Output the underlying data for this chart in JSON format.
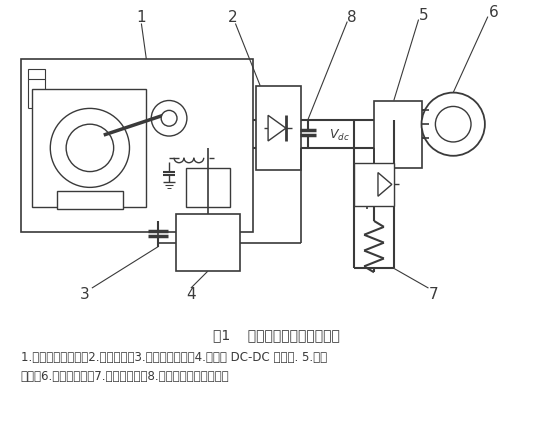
{
  "bg_color": "#ffffff",
  "line_color": "#3a3a3a",
  "title": "图1    起重机混合动力系统简图",
  "caption_line1": "1.是柴油发电机组，2.是整流器，3.是超级电容组，4.是双向 DC-DC 变换器. 5.是逆",
  "caption_line2": "变器，6.是工作电机，7.是能耗电阻，8.是起稳压作用的电容。"
}
